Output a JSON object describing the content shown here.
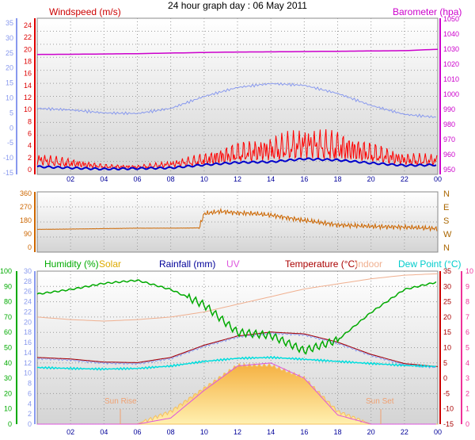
{
  "title": "24 hour graph day : 06 May 2011",
  "colors": {
    "wind": "#dd0000",
    "gust": "#ff0000",
    "windAvg": "#0000cc",
    "baro": "#cc00cc",
    "temp": "#aa0000",
    "humidity": "#00aa00",
    "dew": "#00dddd",
    "uv": "#dd55dd",
    "indoor": "#f0b090",
    "rain": "#000099",
    "solar": "#ffcc55",
    "dir": "#cc6600",
    "leftAxis": "#8899ee",
    "rightAxis": "#ee3399"
  },
  "xTicks": [
    "02",
    "04",
    "06",
    "08",
    "10",
    "12",
    "14",
    "16",
    "18",
    "20",
    "22",
    "00"
  ],
  "chart_data": [
    {
      "type": "line",
      "title": "24 hour graph day : 06 May 2011",
      "panel": "wind-baro",
      "labels": {
        "left": "Windspeed (m/s)",
        "right": "Barometer (hpa)"
      },
      "windTicks": [
        0,
        2,
        4,
        6,
        8,
        10,
        12,
        14,
        16,
        18,
        20,
        22,
        24
      ],
      "outerLeftTicks": [
        -15,
        -10,
        -5,
        0,
        5,
        10,
        15,
        20,
        25,
        30,
        35
      ],
      "baroTicks": [
        950,
        960,
        970,
        980,
        990,
        1000,
        1010,
        1020,
        1030,
        1040,
        1050
      ],
      "x": [
        0,
        2,
        4,
        6,
        8,
        10,
        12,
        14,
        16,
        18,
        20,
        22,
        24
      ],
      "series": [
        {
          "key": "baro",
          "unit": "hPa",
          "values": [
            1026.5,
            1026.6,
            1026.8,
            1027.0,
            1027.4,
            1027.8,
            1028.1,
            1028.2,
            1028.4,
            1028.6,
            1028.8,
            1029.0,
            1029.9
          ]
        },
        {
          "key": "temp",
          "unit": "C",
          "values": [
            6.5,
            6.0,
            5.0,
            4.8,
            6.5,
            10.5,
            13.5,
            14.8,
            14.2,
            11.5,
            7.5,
            4.5,
            3.5
          ]
        },
        {
          "key": "gust",
          "unit": "m/s",
          "values": [
            1.5,
            1.0,
            0.5,
            0.4,
            0.8,
            1.5,
            2.5,
            3.0,
            3.8,
            3.5,
            2.5,
            1.5,
            1.4
          ]
        },
        {
          "key": "windAvg",
          "unit": "m/s",
          "values": [
            0.5,
            0.3,
            0.1,
            0.2,
            0.3,
            0.8,
            1.2,
            1.3,
            1.8,
            1.6,
            1.1,
            0.7,
            0.8
          ]
        }
      ]
    },
    {
      "type": "line",
      "panel": "direction",
      "ticks": [
        0,
        90,
        180,
        270,
        360
      ],
      "compass": [
        "N",
        "W",
        "S",
        "E",
        "N"
      ],
      "x": [
        0,
        2,
        4,
        6,
        8,
        9.7,
        10,
        11,
        12,
        13,
        14,
        16,
        18,
        20,
        22,
        24
      ],
      "values": [
        120,
        122,
        125,
        128,
        128,
        130,
        225,
        240,
        230,
        225,
        215,
        180,
        150,
        140,
        135,
        125
      ]
    },
    {
      "type": "line",
      "panel": "climate",
      "labels": {
        "humidity": "Humidity (%)",
        "solar": "Solar",
        "rain": "Rainfall (mm)",
        "uv": "UV",
        "temp": "Temperature (°C)",
        "indoor": "Indoor",
        "dew": "Dew Point (°C)"
      },
      "humidityTicks": [
        0,
        10,
        20,
        30,
        40,
        50,
        60,
        70,
        80,
        90,
        100
      ],
      "innerLeftTicks": [
        0,
        2,
        4,
        6,
        8,
        10,
        12,
        14,
        16,
        18,
        20,
        22,
        24,
        26,
        28,
        30
      ],
      "tempTicks": [
        -15,
        -10,
        -5,
        0,
        5,
        10,
        15,
        20,
        25,
        30,
        35
      ],
      "uvTicks": [
        0,
        1,
        2,
        3,
        4,
        5,
        6,
        7,
        8,
        9,
        10
      ],
      "annotations": [
        "Sun Rise",
        "Sun Set"
      ],
      "x": [
        0,
        2,
        4,
        6,
        8,
        10,
        12,
        14,
        16,
        18,
        20,
        22,
        24
      ],
      "series": [
        {
          "key": "humidity",
          "unit": "%",
          "values": [
            85,
            88,
            92,
            94,
            88,
            78,
            60,
            58,
            48,
            55,
            73,
            88,
            93
          ]
        },
        {
          "key": "temp",
          "unit": "C",
          "values": [
            6.5,
            6.0,
            5.0,
            4.8,
            6.5,
            10.5,
            13.5,
            14.8,
            14.2,
            11.5,
            7.5,
            4.5,
            3.5
          ]
        },
        {
          "key": "dew",
          "unit": "C",
          "values": [
            3.5,
            3.2,
            3.0,
            3.2,
            4.0,
            5.5,
            6.5,
            6.8,
            6.2,
            5.5,
            4.8,
            4.2,
            3.8
          ]
        },
        {
          "key": "indoor",
          "unit": "C",
          "values": [
            21.0,
            20.5,
            20.2,
            20.5,
            21.0,
            22.0,
            23.5,
            25.0,
            26.5,
            27.5,
            28.5,
            29.2,
            29.5
          ]
        },
        {
          "key": "uv",
          "unit": "index",
          "values": [
            0,
            0,
            0,
            0,
            0.4,
            2.2,
            3.8,
            4.0,
            3.0,
            0.6,
            0,
            0,
            0
          ]
        },
        {
          "key": "solar",
          "unit": "scale",
          "values": [
            0,
            0,
            0,
            0.05,
            2.5,
            7.0,
            11.5,
            11.5,
            9.0,
            2.5,
            0,
            0,
            0
          ]
        }
      ]
    }
  ]
}
